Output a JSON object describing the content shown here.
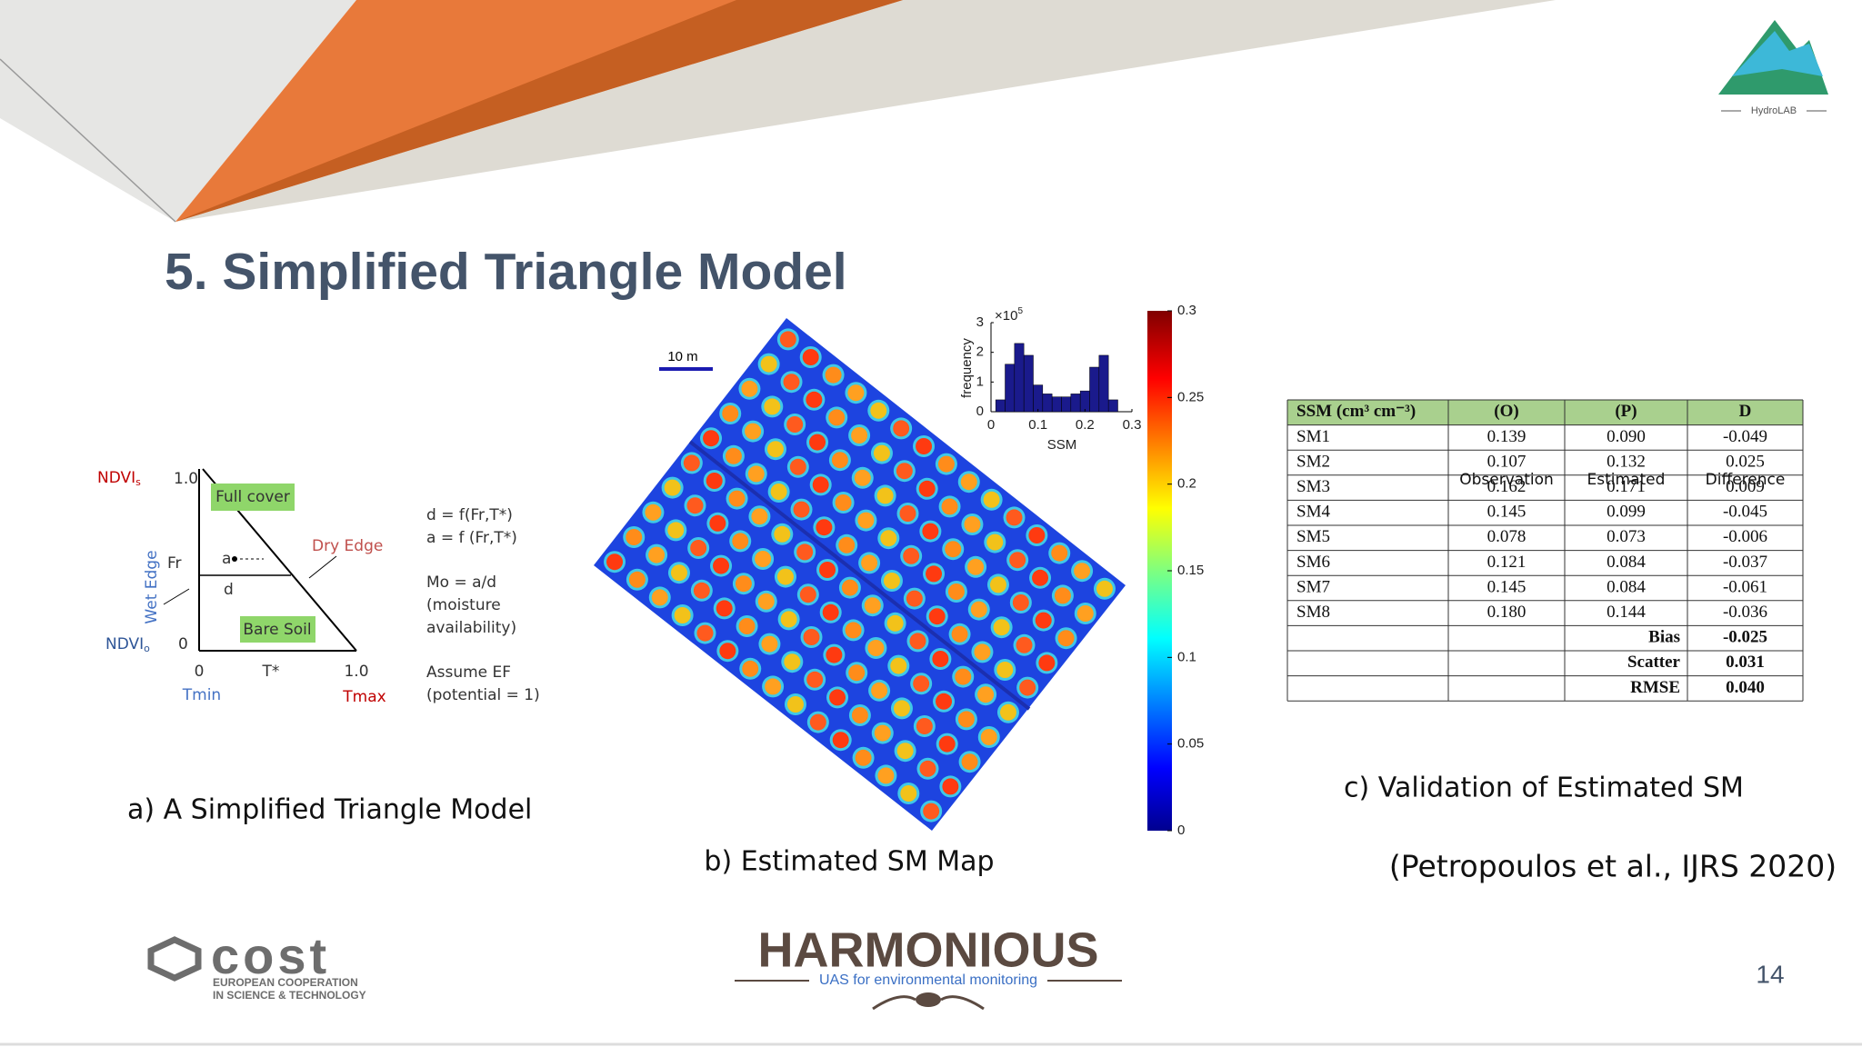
{
  "header": {
    "title": "5. Simplified Triangle Model",
    "logo": "HydroLAB"
  },
  "panel_a": {
    "caption": "a) A Simplified Triangle Model",
    "diagram": {
      "ndvi_s": "NDVI",
      "ndvi_s_sub": "s",
      "top_value": "1.0",
      "full_cover": "Full cover",
      "dry_edge": "Dry Edge",
      "fr": "Fr",
      "a": "a",
      "d": "d",
      "wet_edge": "Wet Edge",
      "bare_soil": "Bare Soil",
      "ndvi_o": "NDVI",
      "ndvi_o_sub": "o",
      "y_zero": "0",
      "x_zero": "0",
      "t_star": "T*",
      "x_end": "1.0",
      "tmin": "Tmin",
      "tmax": "Tmax"
    },
    "equations": [
      "d = f(Fr,T*)",
      "a = f (Fr,T*)",
      "Mo = a/d",
      "(moisture",
      "availability)",
      "Assume EF",
      "(potential = 1)"
    ]
  },
  "panel_b": {
    "caption": "b) Estimated SM Map",
    "scale_bar": "10 m",
    "histogram": {
      "y_label": "frequency",
      "x_label": "SSM",
      "multiplier": "×10",
      "exponent": "5",
      "bins": [
        0.01,
        0.03,
        0.05,
        0.07,
        0.09,
        0.11,
        0.13,
        0.15,
        0.17,
        0.19,
        0.21,
        0.23,
        0.25,
        0.27
      ],
      "counts": [
        0.4,
        1.6,
        2.3,
        1.9,
        0.9,
        0.6,
        0.5,
        0.5,
        0.6,
        0.7,
        1.5,
        1.9,
        0.4
      ],
      "xlim": [
        0,
        0.3
      ],
      "xticks": [
        0,
        0.1,
        0.2,
        0.3
      ],
      "ylim": [
        0,
        3
      ],
      "yticks": [
        0,
        1,
        2,
        3
      ]
    },
    "colorbar": {
      "lim": [
        0,
        0.3
      ],
      "ticks": [
        0,
        0.05,
        0.1,
        0.15,
        0.2,
        0.25,
        0.3
      ]
    }
  },
  "panel_c": {
    "caption": "c) Validation of Estimated SM",
    "table": {
      "header": [
        "SSM (cm³ cm⁻³)",
        "(O)",
        "(P)",
        "D"
      ],
      "rows": [
        [
          "SM1",
          "0.139",
          "0.090",
          "-0.049"
        ],
        [
          "SM2",
          "0.107",
          "0.132",
          "0.025"
        ],
        [
          "SM3",
          "0.162",
          "0.171",
          "0.009"
        ],
        [
          "SM4",
          "0.145",
          "0.099",
          "-0.045"
        ],
        [
          "SM5",
          "0.078",
          "0.073",
          "-0.006"
        ],
        [
          "SM6",
          "0.121",
          "0.084",
          "-0.037"
        ],
        [
          "SM7",
          "0.145",
          "0.084",
          "-0.061"
        ],
        [
          "SM8",
          "0.180",
          "0.144",
          "-0.036"
        ]
      ],
      "summary": [
        {
          "label": "Bias",
          "value": "-0.025"
        },
        {
          "label": "Scatter",
          "value": "0.031"
        },
        {
          "label": "RMSE",
          "value": "0.040"
        }
      ],
      "overlay": [
        "Observation",
        "Estimated",
        "Difference"
      ]
    }
  },
  "citation": "(Petropoulos et al., IJRS 2020)",
  "footer": {
    "cost": "cost",
    "cost_line1": "EUROPEAN COOPERATION",
    "cost_line2": "IN SCIENCE & TECHNOLOGY",
    "harmonious": "HARMONIOUS",
    "harmonious_sub": "UAS for environmental monitoring",
    "page": "14"
  }
}
